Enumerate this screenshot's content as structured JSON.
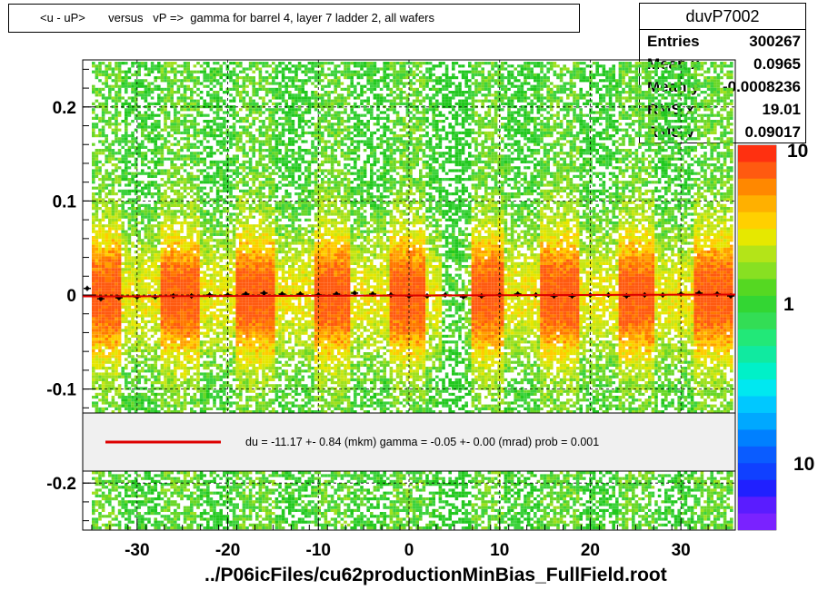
{
  "title": "<u - uP>       versus   vP =>  gamma for barrel 4, layer 7 ladder 2, all wafers",
  "stats": {
    "name": "duvP7002",
    "rows": [
      {
        "label": "Entries",
        "value": "300267"
      },
      {
        "label": "Mean x",
        "value": "0.0965"
      },
      {
        "label": "Mean y",
        "value": "-0.0008236"
      },
      {
        "label": "RMS x",
        "value": "19.01"
      },
      {
        "label": "RMS y",
        "value": "0.09017"
      }
    ]
  },
  "legend_text": "du =  -11.17 +-  0.84 (mkm) gamma =   -0.05 +-  0.00 (mrad) prob = 0.001",
  "footer": "../P06icFiles/cu62productionMinBias_FullField.root",
  "colors": {
    "fit_line": "#dd0000",
    "frame": "#000000",
    "legend_bg": "#f0f0f0"
  },
  "chart_data": {
    "type": "heatmap",
    "title": "<u - uP>       versus   vP =>  gamma for barrel 4, layer 7 ladder 2, all wafers",
    "xlabel": "",
    "ylabel": "",
    "xlim": [
      -36,
      36
    ],
    "ylim": [
      -0.25,
      0.25
    ],
    "x_ticks": [
      "-30",
      "-20",
      "-10",
      "0",
      "10",
      "20",
      "30"
    ],
    "y_ticks": [
      "-0.2",
      "-0.1",
      "0",
      "0.1",
      "0.2"
    ],
    "colorbar_ticks": [
      "10",
      "1",
      "10"
    ],
    "grid": true,
    "log_z": true,
    "profile": {
      "x": [
        -35.5,
        -34,
        -32,
        -30,
        -28,
        -26,
        -24,
        -22,
        -20,
        -18,
        -16,
        -14,
        -12,
        -10,
        -8,
        -6,
        -4,
        -2,
        0,
        2,
        4,
        6,
        8,
        10,
        12,
        14,
        16,
        18,
        20,
        22,
        24,
        26,
        28,
        30,
        32,
        34,
        35.5
      ],
      "y": [
        0.007,
        -0.004,
        -0.003,
        -0.002,
        -0.002,
        -0.001,
        -0.001,
        0,
        0,
        0.001,
        0.002,
        0.001,
        0.001,
        0,
        0.001,
        0.002,
        0.001,
        0,
        -0.001,
        -0.001,
        0,
        -0.002,
        -0.001,
        0,
        0.001,
        0,
        -0.001,
        -0.001,
        0,
        0,
        -0.001,
        0,
        0,
        0.001,
        0.002,
        0.001,
        -0.001
      ]
    },
    "fit": {
      "x": [
        -36,
        36
      ],
      "y": [
        -0.0015,
        0.0005
      ]
    }
  }
}
